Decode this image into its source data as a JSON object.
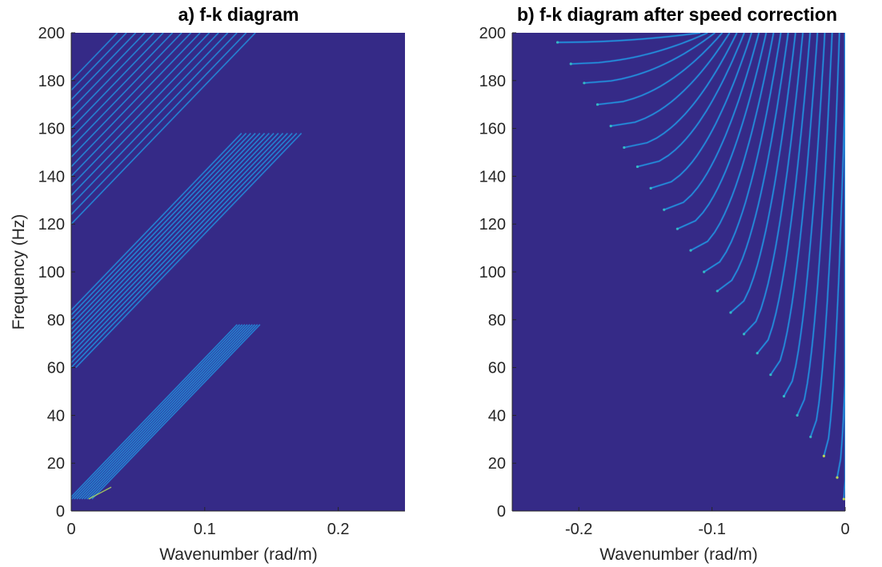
{
  "chart_data": [
    {
      "type": "heatmap",
      "title": "a) f-k diagram",
      "xlabel": "Wavenumber (rad/m)",
      "ylabel": "Frequency (Hz)",
      "xlim": [
        0,
        0.25
      ],
      "ylim": [
        0,
        200
      ],
      "xticks": [
        0,
        0.1,
        0.2
      ],
      "xtick_labels": [
        "0",
        "0.1",
        "0.2"
      ],
      "yticks": [
        0,
        20,
        40,
        60,
        80,
        100,
        120,
        140,
        160,
        180,
        200
      ],
      "ytick_labels": [
        "0",
        "20",
        "40",
        "60",
        "80",
        "100",
        "120",
        "140",
        "160",
        "180",
        "200"
      ],
      "grid": false,
      "colormap": "parula",
      "background_color": "#352a87",
      "ridge_color": "#1f9ce2",
      "ridge_families": [
        {
          "name": "",
          "slope_hz_per_rad_m": 580,
          "count": 10,
          "f_min": 5,
          "f_max": 78,
          "intercept_start": -4,
          "intercept_step": 1.1
        },
        {
          "name": "",
          "slope_hz_per_rad_m": 580,
          "count": 14,
          "f_min": 60,
          "f_max": 158,
          "intercept_start": 58,
          "intercept_step": 2.0
        },
        {
          "name": "",
          "slope_hz_per_rad_m": 580,
          "count": 16,
          "f_min": 120,
          "f_max": 200,
          "intercept_start": 120,
          "intercept_step": 4.0
        }
      ]
    },
    {
      "type": "heatmap",
      "title": "b) f-k diagram after speed correction",
      "xlabel": "Wavenumber (rad/m)",
      "ylabel": "",
      "xlim": [
        -0.25,
        0
      ],
      "ylim": [
        0,
        200
      ],
      "xticks": [
        -0.2,
        -0.1,
        0
      ],
      "xtick_labels": [
        "-0.2",
        "-0.1",
        "0"
      ],
      "yticks": [
        0,
        20,
        40,
        60,
        80,
        100,
        120,
        140,
        160,
        180,
        200
      ],
      "ytick_labels": [
        "0",
        "20",
        "40",
        "60",
        "80",
        "100",
        "120",
        "140",
        "160",
        "180",
        "200"
      ],
      "grid": false,
      "colormap": "parula",
      "background_color": "#352a87",
      "ridge_color": "#1f9ce2",
      "ridge_starts": [
        {
          "k": -0.001,
          "f": 5
        },
        {
          "k": -0.006,
          "f": 14
        },
        {
          "k": -0.016,
          "f": 23
        },
        {
          "k": -0.026,
          "f": 31
        },
        {
          "k": -0.036,
          "f": 40
        },
        {
          "k": -0.046,
          "f": 48
        },
        {
          "k": -0.056,
          "f": 57
        },
        {
          "k": -0.066,
          "f": 66
        },
        {
          "k": -0.076,
          "f": 74
        },
        {
          "k": -0.086,
          "f": 83
        },
        {
          "k": -0.096,
          "f": 92
        },
        {
          "k": -0.106,
          "f": 100
        },
        {
          "k": -0.116,
          "f": 109
        },
        {
          "k": -0.126,
          "f": 118
        },
        {
          "k": -0.136,
          "f": 126
        },
        {
          "k": -0.146,
          "f": 135
        },
        {
          "k": -0.156,
          "f": 144
        },
        {
          "k": -0.166,
          "f": 152
        },
        {
          "k": -0.176,
          "f": 161
        },
        {
          "k": -0.186,
          "f": 170
        },
        {
          "k": -0.196,
          "f": 179
        },
        {
          "k": -0.206,
          "f": 187
        },
        {
          "k": -0.216,
          "f": 196
        }
      ]
    }
  ]
}
